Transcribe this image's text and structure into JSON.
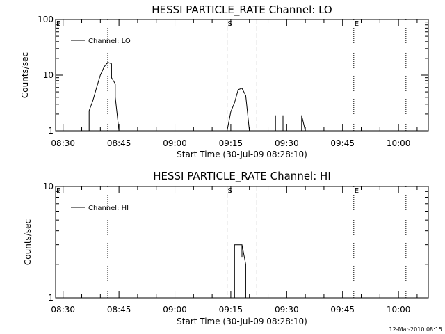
{
  "chart_data": [
    {
      "type": "line",
      "title": "HESSI PARTICLE_RATE Channel: LO",
      "xlabel": "Start Time (30-Jul-09 08:28:10)",
      "ylabel": "Counts/sec",
      "y_scale": "log",
      "ylim": [
        1,
        100
      ],
      "xlim": [
        "08:28",
        "10:08"
      ],
      "x_ticks": [
        "08:30",
        "08:45",
        "09:00",
        "09:15",
        "09:30",
        "09:45",
        "10:00"
      ],
      "y_ticks": [
        "1",
        "10",
        "100"
      ],
      "legend": {
        "label": "Channel: LO",
        "position": "top-left"
      },
      "markers": [
        {
          "label": "E",
          "time": "08:28"
        },
        {
          "label": "",
          "time": "08:42"
        },
        {
          "label": "S",
          "time": "09:14"
        },
        {
          "label": "",
          "time": "09:22"
        },
        {
          "label": "E",
          "time": "09:48"
        },
        {
          "label": "",
          "time": "10:02"
        }
      ],
      "series": [
        {
          "name": "Channel: LO",
          "points": [
            [
              "08:37",
              1.0
            ],
            [
              "08:37",
              2.3
            ],
            [
              "08:38",
              3.5
            ],
            [
              "08:39",
              6.0
            ],
            [
              "08:40",
              10.0
            ],
            [
              "08:41",
              14.0
            ],
            [
              "08:42",
              17.0
            ],
            [
              "08:43",
              16.0
            ],
            [
              "08:43",
              9.0
            ],
            [
              "08:44",
              7.0
            ],
            [
              "08:44",
              4.0
            ],
            [
              "08:45",
              1.0
            ]
          ]
        },
        {
          "name": "Channel: LO",
          "points": [
            [
              "09:14",
              1.0
            ],
            [
              "09:15",
              2.2
            ],
            [
              "09:16",
              3.2
            ],
            [
              "09:17",
              5.5
            ],
            [
              "09:18",
              5.8
            ],
            [
              "09:19",
              4.3
            ],
            [
              "09:20",
              1.0
            ]
          ]
        },
        {
          "name": "Channel: LO",
          "points": [
            [
              "09:27",
              1.0
            ],
            [
              "09:27",
              1.9
            ],
            [
              "09:27",
              1.0
            ],
            [
              "09:29",
              1.0
            ],
            [
              "09:29",
              1.9
            ],
            [
              "09:29",
              1.0
            ]
          ]
        },
        {
          "name": "Channel: LO",
          "points": [
            [
              "09:34",
              1.0
            ],
            [
              "09:34",
              1.9
            ],
            [
              "09:35",
              1.0
            ]
          ]
        }
      ]
    },
    {
      "type": "line",
      "title": "HESSI PARTICLE_RATE Channel: HI",
      "xlabel": "Start Time (30-Jul-09 08:28:10)",
      "ylabel": "Counts/sec",
      "y_scale": "log",
      "ylim": [
        1,
        10
      ],
      "xlim": [
        "08:28",
        "10:08"
      ],
      "x_ticks": [
        "08:30",
        "08:45",
        "09:00",
        "09:15",
        "09:30",
        "09:45",
        "10:00"
      ],
      "y_ticks": [
        "1",
        "10"
      ],
      "legend": {
        "label": "Channel: HI",
        "position": "top-left"
      },
      "markers": [
        {
          "label": "E",
          "time": "08:28"
        },
        {
          "label": "",
          "time": "08:42"
        },
        {
          "label": "S",
          "time": "09:14"
        },
        {
          "label": "",
          "time": "09:22"
        },
        {
          "label": "E",
          "time": "09:48"
        },
        {
          "label": "",
          "time": "10:02"
        }
      ],
      "series": [
        {
          "name": "Channel: HI",
          "points": [
            [
              "09:16",
              1.0
            ],
            [
              "09:16",
              3.0
            ],
            [
              "09:18",
              3.0
            ],
            [
              "09:18",
              2.3
            ],
            [
              "09:18",
              3.0
            ],
            [
              "09:19",
              2.0
            ],
            [
              "09:19",
              1.0
            ]
          ]
        }
      ]
    }
  ],
  "footer": {
    "timestamp": "12-Mar-2010 08:15"
  }
}
